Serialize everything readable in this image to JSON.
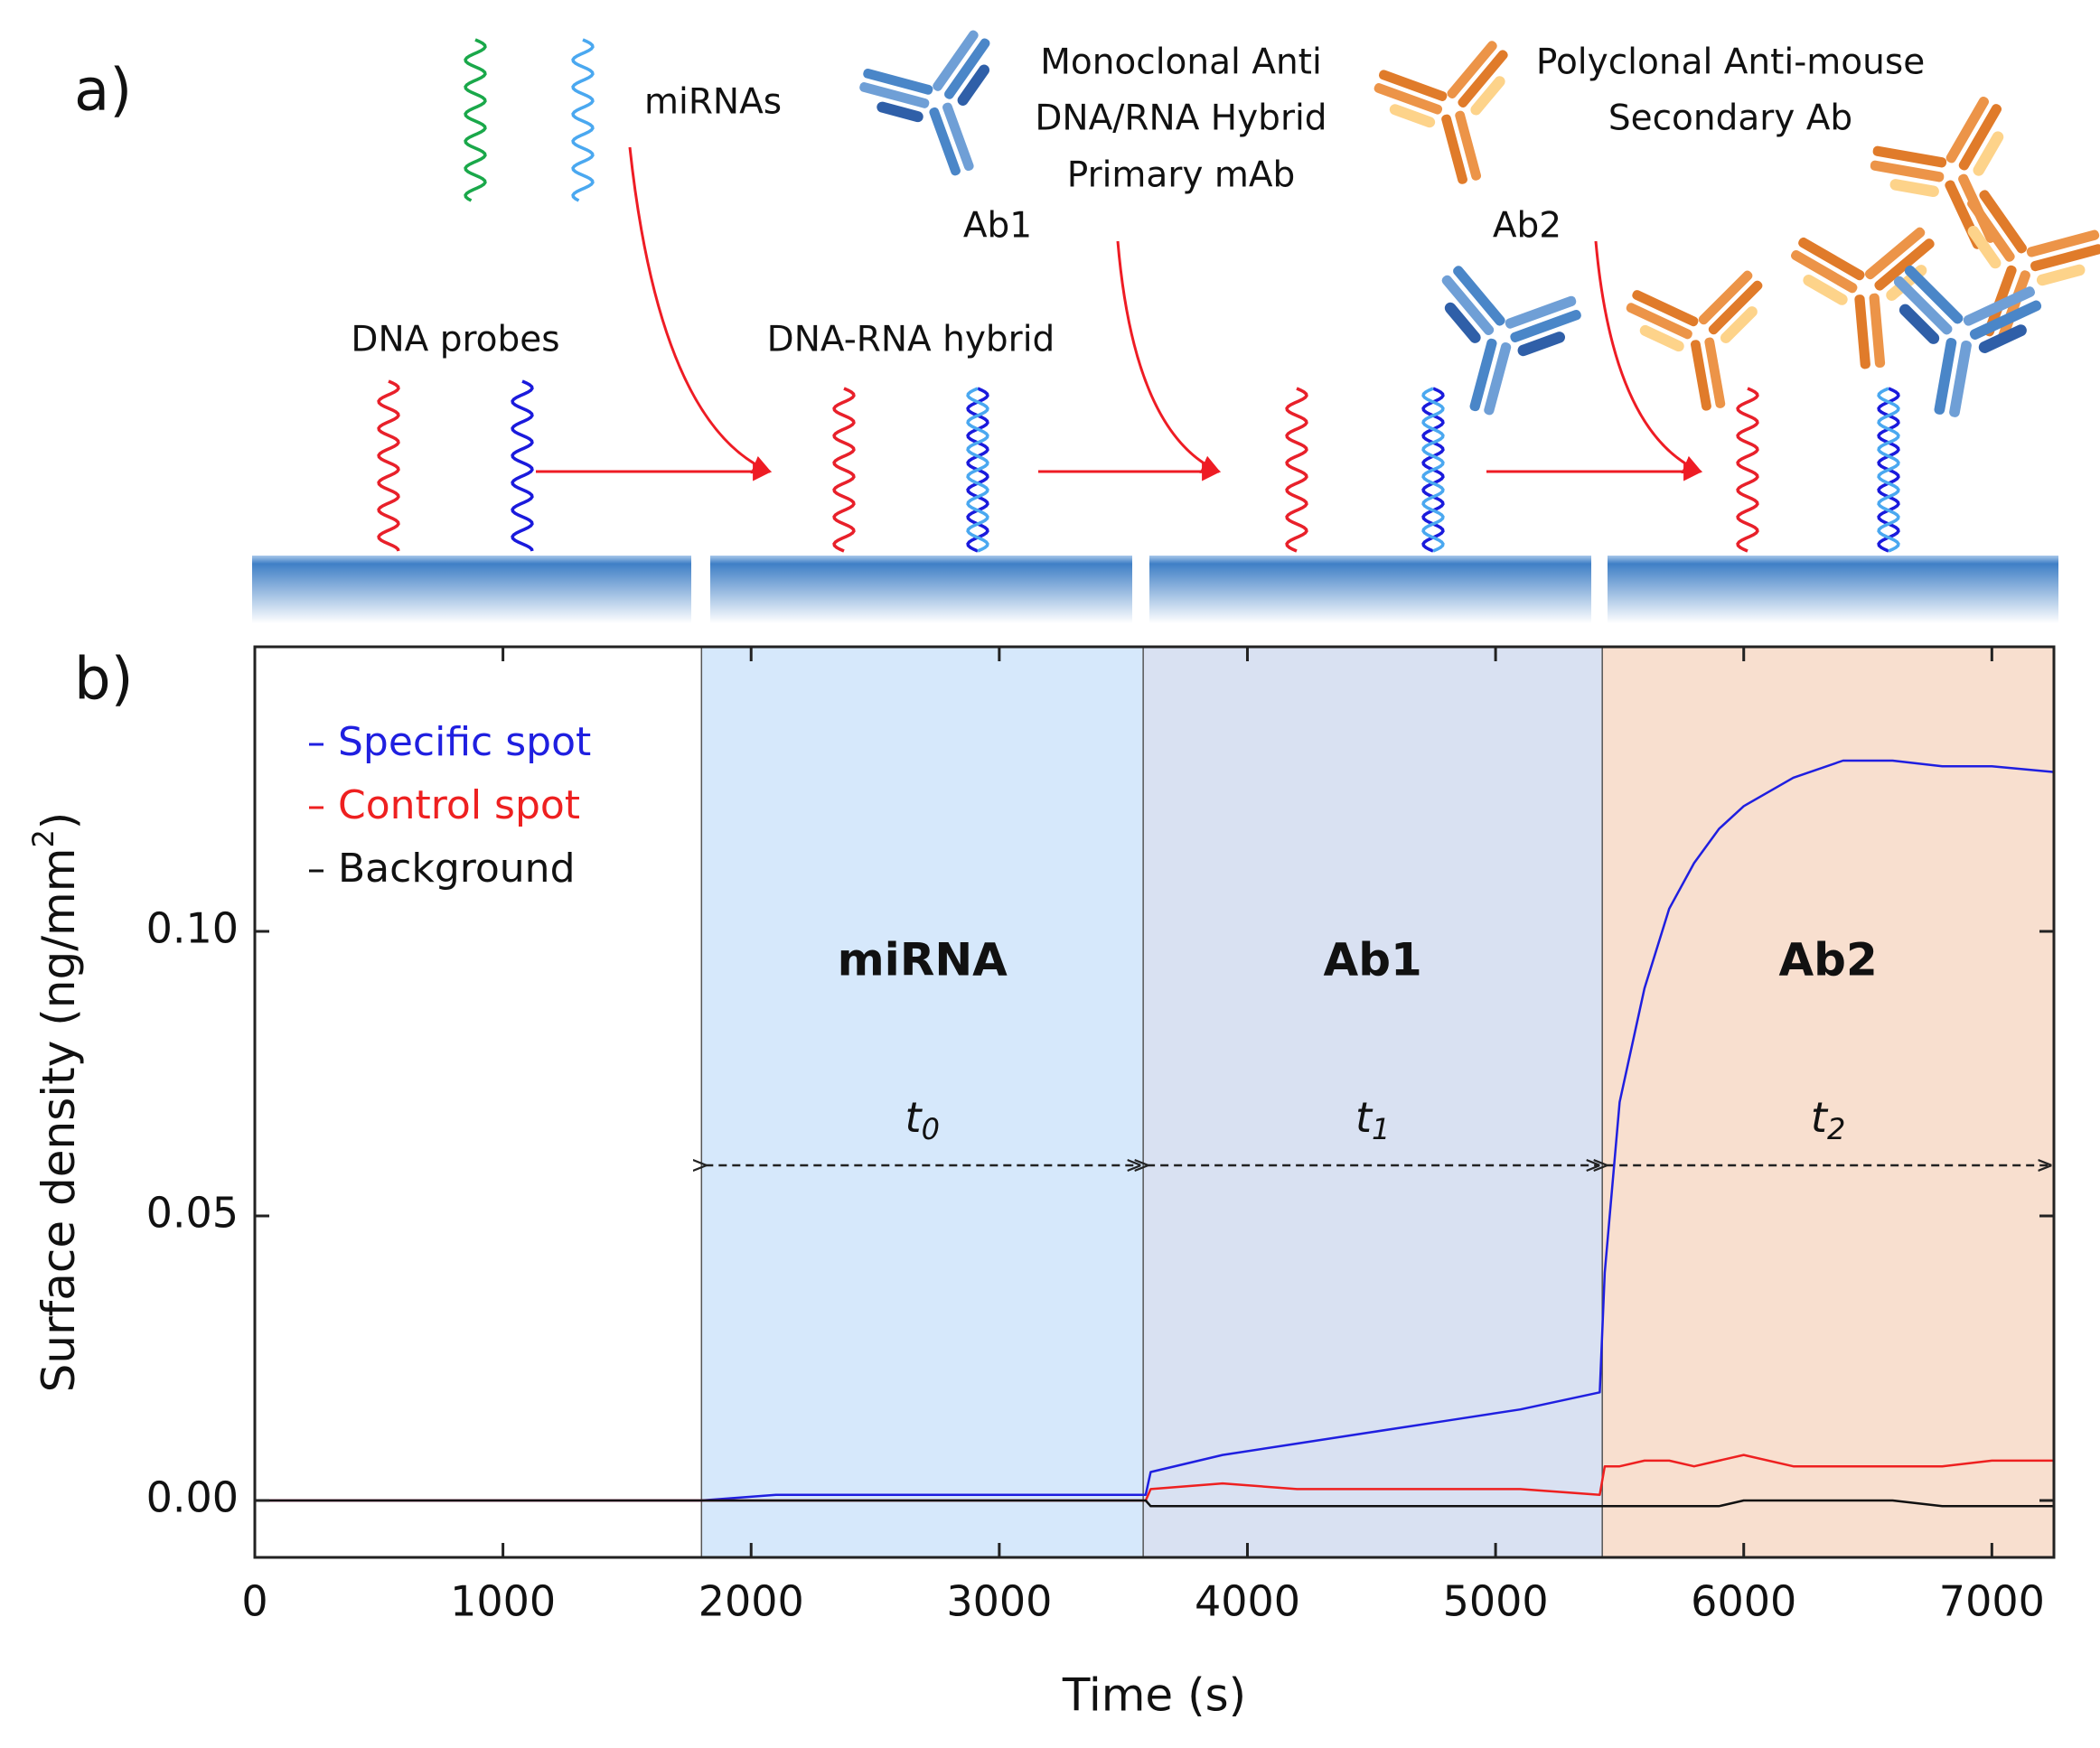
{
  "diagram": {
    "panel_a": "a)",
    "panel_b": "b)",
    "mirnas": "miRNAs",
    "primary": [
      "Monoclonal Anti",
      "DNA/RNA Hybrid",
      "Primary mAb"
    ],
    "secondary": [
      "Polyclonal Anti-mouse",
      "Secondary Ab"
    ],
    "ab1": "Ab1",
    "ab2": "Ab2",
    "dna_probes": "DNA probes",
    "hybrid": "DNA-RNA hybrid"
  },
  "chart_data": {
    "type": "line",
    "xlabel": "Time (s)",
    "ylabel": [
      "Surface density (ng/mm",
      "2",
      ")"
    ],
    "xlim": [
      0,
      7250
    ],
    "ylim": [
      -0.01,
      0.15
    ],
    "xticks": [
      0,
      1000,
      2000,
      3000,
      4000,
      5000,
      6000,
      7000
    ],
    "yticks": [
      {
        "value": 0,
        "label": "0.00"
      },
      {
        "value": 0.05,
        "label": "0.05"
      },
      {
        "value": 0.1,
        "label": "0.10"
      }
    ],
    "legend": "upper left",
    "regions": [
      {
        "label": "miRNA",
        "start": 1800,
        "end": 3580,
        "color": "#d6e8fb",
        "time": "t",
        "sub": "0"
      },
      {
        "label": "Ab1",
        "start": 3580,
        "end": 5430,
        "color": "#d9e1f2",
        "time": "t",
        "sub": "1"
      },
      {
        "label": "Ab2",
        "start": 5430,
        "end": 7250,
        "color": "#f8dfcf",
        "time": "t",
        "sub": "2"
      }
    ],
    "x": [
      0,
      300,
      600,
      900,
      1200,
      1500,
      1800,
      2100,
      2400,
      2700,
      3000,
      3300,
      3590,
      3610,
      3900,
      4200,
      4500,
      4800,
      5100,
      5420,
      5440,
      5500,
      5600,
      5700,
      5800,
      5900,
      6000,
      6200,
      6400,
      6600,
      6800,
      7000,
      7250
    ],
    "series": [
      {
        "name": "Specific spot",
        "color": "#1f1fe0",
        "values": [
          0,
          0,
          0,
          0,
          0,
          0,
          0,
          0.001,
          0.001,
          0.001,
          0.001,
          0.001,
          0.001,
          0.005,
          0.008,
          0.01,
          0.012,
          0.014,
          0.016,
          0.019,
          0.04,
          0.07,
          0.09,
          0.104,
          0.112,
          0.118,
          0.122,
          0.127,
          0.13,
          0.13,
          0.129,
          0.129,
          0.128
        ]
      },
      {
        "name": "Control spot",
        "color": "#ee2020",
        "values": [
          0,
          0,
          0,
          0,
          0,
          0,
          0,
          0,
          0,
          0,
          0,
          0,
          0,
          0.002,
          0.003,
          0.002,
          0.002,
          0.002,
          0.002,
          0.001,
          0.006,
          0.006,
          0.007,
          0.007,
          0.006,
          0.007,
          0.008,
          0.006,
          0.006,
          0.006,
          0.006,
          0.007,
          0.007
        ]
      },
      {
        "name": "Background",
        "color": "#111111",
        "values": [
          0,
          0,
          0,
          0,
          0,
          0,
          0,
          0,
          0,
          0,
          0,
          0,
          0,
          -0.001,
          -0.001,
          -0.001,
          -0.001,
          -0.001,
          -0.001,
          -0.001,
          -0.001,
          -0.001,
          -0.001,
          -0.001,
          -0.001,
          -0.001,
          0,
          0,
          0,
          0,
          -0.001,
          -0.001,
          -0.001
        ]
      }
    ]
  }
}
